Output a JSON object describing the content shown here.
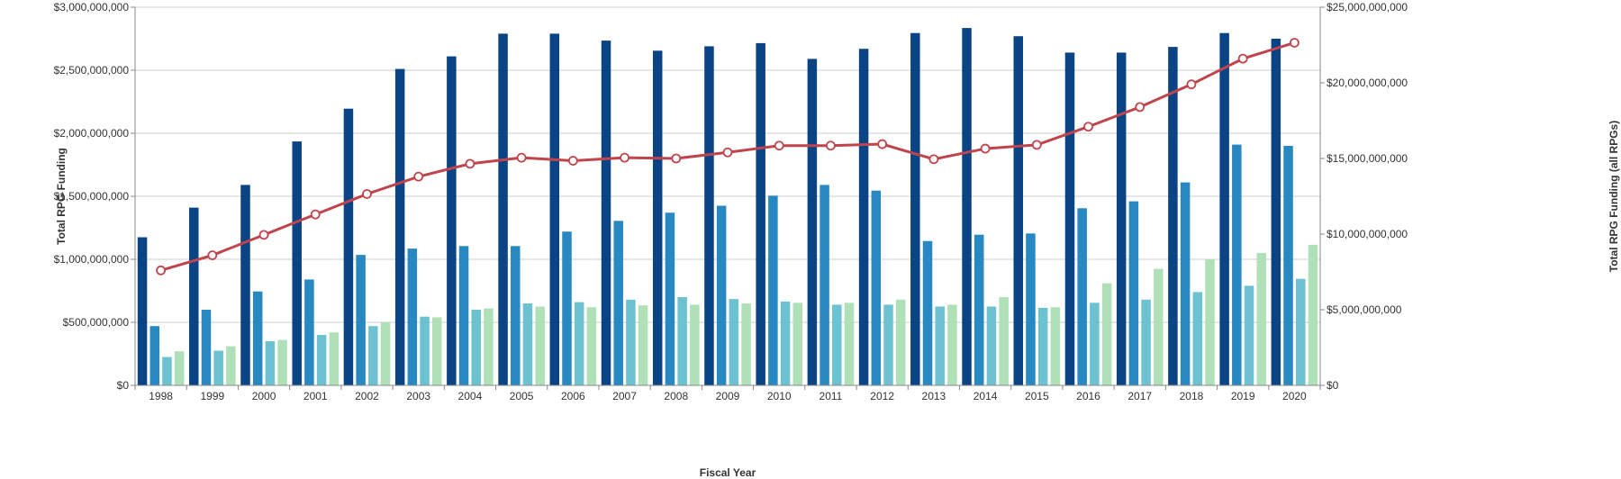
{
  "chart_data": {
    "type": "bar",
    "title": "",
    "xlabel": "Fiscal Year",
    "ylabel": "Total RPG Funding",
    "y2label": "Total RPG Funding (all RPGs)",
    "ylim": [
      0,
      3000000000
    ],
    "y2lim": [
      0,
      25000000000
    ],
    "grid": true,
    "legend": "none",
    "categories": [
      "1998",
      "1999",
      "2000",
      "2001",
      "2002",
      "2003",
      "2004",
      "2005",
      "2006",
      "2007",
      "2008",
      "2009",
      "2010",
      "2011",
      "2012",
      "2013",
      "2014",
      "2015",
      "2016",
      "2017",
      "2018",
      "2019",
      "2020"
    ],
    "y_ticks": [
      {
        "value": 0,
        "label": "$0"
      },
      {
        "value": 500000000,
        "label": "$500,000,000"
      },
      {
        "value": 1000000000,
        "label": "$1,000,000,000"
      },
      {
        "value": 1500000000,
        "label": "$1,500,000,000"
      },
      {
        "value": 2000000000,
        "label": "$2,000,000,000"
      },
      {
        "value": 2500000000,
        "label": "$2,500,000,000"
      },
      {
        "value": 3000000000,
        "label": "$3,000,000,000"
      }
    ],
    "y2_ticks": [
      {
        "value": 0,
        "label": "$0"
      },
      {
        "value": 5000000000,
        "label": "$5,000,000,000"
      },
      {
        "value": 10000000000,
        "label": "$10,000,000,000"
      },
      {
        "value": 15000000000,
        "label": "$15,000,000,000"
      },
      {
        "value": 20000000000,
        "label": "$20,000,000,000"
      },
      {
        "value": 25000000000,
        "label": "$25,000,000,000"
      }
    ],
    "series": [
      {
        "type": "bar",
        "axis": "left",
        "color": "#0b4485",
        "values": [
          1175000000,
          1410000000,
          1590000000,
          1935000000,
          2195000000,
          2510000000,
          2610000000,
          2790000000,
          2790000000,
          2735000000,
          2655000000,
          2690000000,
          2715000000,
          2590000000,
          2670000000,
          2795000000,
          2835000000,
          2770000000,
          2640000000,
          2640000000,
          2685000000,
          2795000000,
          2750000000
        ]
      },
      {
        "type": "bar",
        "axis": "left",
        "color": "#2888c2",
        "values": [
          470000000,
          600000000,
          745000000,
          840000000,
          1035000000,
          1085000000,
          1105000000,
          1105000000,
          1220000000,
          1305000000,
          1370000000,
          1425000000,
          1505000000,
          1590000000,
          1545000000,
          1145000000,
          1195000000,
          1205000000,
          1405000000,
          1460000000,
          1610000000,
          1910000000,
          1900000000
        ]
      },
      {
        "type": "bar",
        "axis": "left",
        "color": "#6cc2d0",
        "values": [
          225000000,
          275000000,
          350000000,
          400000000,
          470000000,
          545000000,
          600000000,
          650000000,
          660000000,
          680000000,
          700000000,
          685000000,
          665000000,
          640000000,
          640000000,
          625000000,
          625000000,
          615000000,
          655000000,
          680000000,
          740000000,
          790000000,
          845000000
        ]
      },
      {
        "type": "bar",
        "axis": "left",
        "color": "#b0e0b8",
        "values": [
          270000000,
          310000000,
          360000000,
          420000000,
          500000000,
          540000000,
          610000000,
          625000000,
          620000000,
          635000000,
          640000000,
          650000000,
          655000000,
          655000000,
          680000000,
          640000000,
          700000000,
          620000000,
          810000000,
          925000000,
          1000000000,
          1050000000,
          1115000000
        ]
      },
      {
        "type": "line",
        "axis": "right",
        "color": "#c0444c",
        "values": [
          7600000000,
          8600000000,
          9950000000,
          11300000000,
          12650000000,
          13800000000,
          14650000000,
          15050000000,
          14850000000,
          15050000000,
          15000000000,
          15400000000,
          15850000000,
          15850000000,
          15950000000,
          14950000000,
          15650000000,
          15900000000,
          17100000000,
          18400000000,
          19900000000,
          21600000000,
          22650000000
        ]
      }
    ]
  }
}
